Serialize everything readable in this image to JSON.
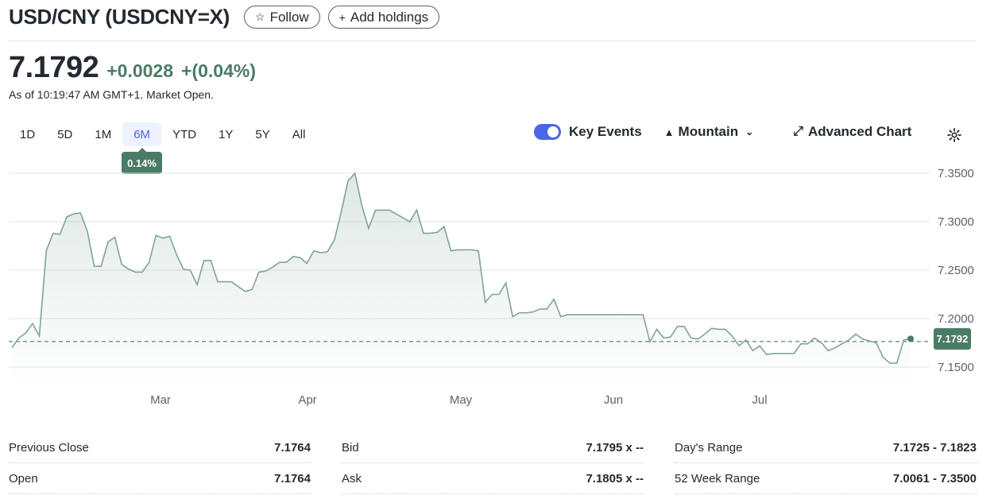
{
  "header": {
    "title": "USD/CNY (USDCNY=X)",
    "follow_label": "Follow",
    "add_holdings_label": "Add holdings"
  },
  "quote": {
    "price": "7.1792",
    "change": "+0.0028",
    "change_percent": "+(0.04%)",
    "as_of": "As of 10:19:47 AM GMT+1. Market Open."
  },
  "range_tabs": [
    "1D",
    "5D",
    "1M",
    "6M",
    "YTD",
    "1Y",
    "5Y",
    "All"
  ],
  "active_range": "6M",
  "range_change_badge": "0.14%",
  "chart_controls": {
    "key_events_label": "Key Events",
    "key_events_on": true,
    "chart_type_label": "Mountain",
    "advanced_label": "Advanced Chart"
  },
  "colors": {
    "line": "#4a7c65",
    "accent": "#4b66e6",
    "positive": "#4a7c65"
  },
  "chart_data": {
    "type": "area",
    "ylim": [
      7.14,
      7.36
    ],
    "yticks": [
      "7.3500",
      "7.3000",
      "7.2500",
      "7.2000",
      "7.1500"
    ],
    "xticks": [
      "Mar",
      "Apr",
      "May",
      "Jun",
      "Jul"
    ],
    "reference_line": 7.1764,
    "last_value_label": "7.1792",
    "series": [
      {
        "values": [
          7.17,
          7.18,
          7.185,
          7.195,
          7.182,
          7.27,
          7.288,
          7.287,
          7.305,
          7.308,
          7.309,
          7.29,
          7.254,
          7.254,
          7.279,
          7.284,
          7.256,
          7.251,
          7.248,
          7.248,
          7.258,
          7.286,
          7.283,
          7.285,
          7.266,
          7.251,
          7.25,
          7.235,
          7.26,
          7.26,
          7.238,
          7.238,
          7.238,
          7.233,
          7.228,
          7.23,
          7.248,
          7.249,
          7.253,
          7.258,
          7.258,
          7.264,
          7.263,
          7.257,
          7.27,
          7.268,
          7.269,
          7.281,
          7.31,
          7.342,
          7.35,
          7.317,
          7.293,
          7.312,
          7.312,
          7.312,
          7.308,
          7.304,
          7.3,
          7.312,
          7.288,
          7.288,
          7.289,
          7.295,
          7.27,
          7.271,
          7.271,
          7.271,
          7.27,
          7.217,
          7.225,
          7.225,
          7.237,
          7.202,
          7.206,
          7.206,
          7.207,
          7.21,
          7.21,
          7.22,
          7.202,
          7.204,
          7.204,
          7.204,
          7.204,
          7.204,
          7.204,
          7.204,
          7.204,
          7.204,
          7.204,
          7.204,
          7.204,
          7.176,
          7.189,
          7.18,
          7.181,
          7.192,
          7.192,
          7.18,
          7.179,
          7.184,
          7.19,
          7.189,
          7.189,
          7.182,
          7.172,
          7.178,
          7.167,
          7.172,
          7.163,
          7.164,
          7.164,
          7.164,
          7.164,
          7.174,
          7.174,
          7.18,
          7.175,
          7.167,
          7.17,
          7.174,
          7.178,
          7.184,
          7.179,
          7.177,
          7.175,
          7.16,
          7.154,
          7.154,
          7.178,
          7.1792
        ]
      }
    ]
  },
  "stats": {
    "col1": [
      {
        "label": "Previous Close",
        "value": "7.1764"
      },
      {
        "label": "Open",
        "value": "7.1764"
      }
    ],
    "col2": [
      {
        "label": "Bid",
        "value": "7.1795 x --"
      },
      {
        "label": "Ask",
        "value": "7.1805 x --"
      }
    ],
    "col3": [
      {
        "label": "Day's Range",
        "value": "7.1725 - 7.1823"
      },
      {
        "label": "52 Week Range",
        "value": "7.0061 - 7.3500"
      }
    ]
  }
}
